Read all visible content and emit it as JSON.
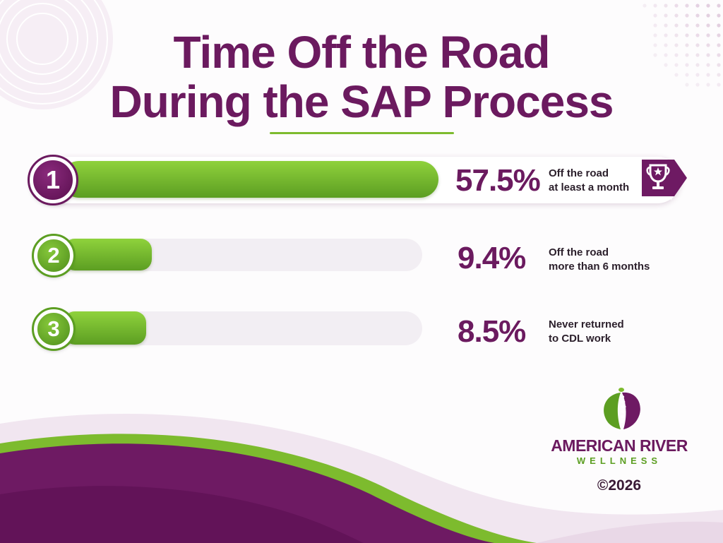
{
  "title": {
    "line1": "Time Off the Road",
    "line2": "During the SAP Process"
  },
  "chart_data": {
    "type": "bar",
    "orientation": "horizontal",
    "title": "Time Off the Road During the SAP Process",
    "categories": [
      "Off the road at least a month",
      "Off the road more than 6 months",
      "Never returned to CDL work"
    ],
    "values": [
      57.5,
      9.4,
      8.5
    ],
    "unit": "%",
    "xlim": [
      0,
      100
    ]
  },
  "items": [
    {
      "rank": "1",
      "value": 57.5,
      "value_label": "57.5%",
      "desc_line1": "Off the road",
      "desc_line2": "at least a month",
      "highlight": true
    },
    {
      "rank": "2",
      "value": 9.4,
      "value_label": "9.4%",
      "desc_line1": "Off the road",
      "desc_line2": "more than 6 months",
      "highlight": false
    },
    {
      "rank": "3",
      "value": 8.5,
      "value_label": "8.5%",
      "desc_line1": "Never returned",
      "desc_line2": "to CDL work",
      "highlight": false
    }
  ],
  "icons": {
    "top_item": "trophy-icon",
    "logo": "leaf-spine-logo-icon"
  },
  "brand": {
    "name": "AMERICAN RIVER",
    "sub": "WELLNESS",
    "copyright": "©2026"
  },
  "colors": {
    "purple": "#6b1a5f",
    "green": "#7dbb2e",
    "track": "#f2eef3"
  }
}
